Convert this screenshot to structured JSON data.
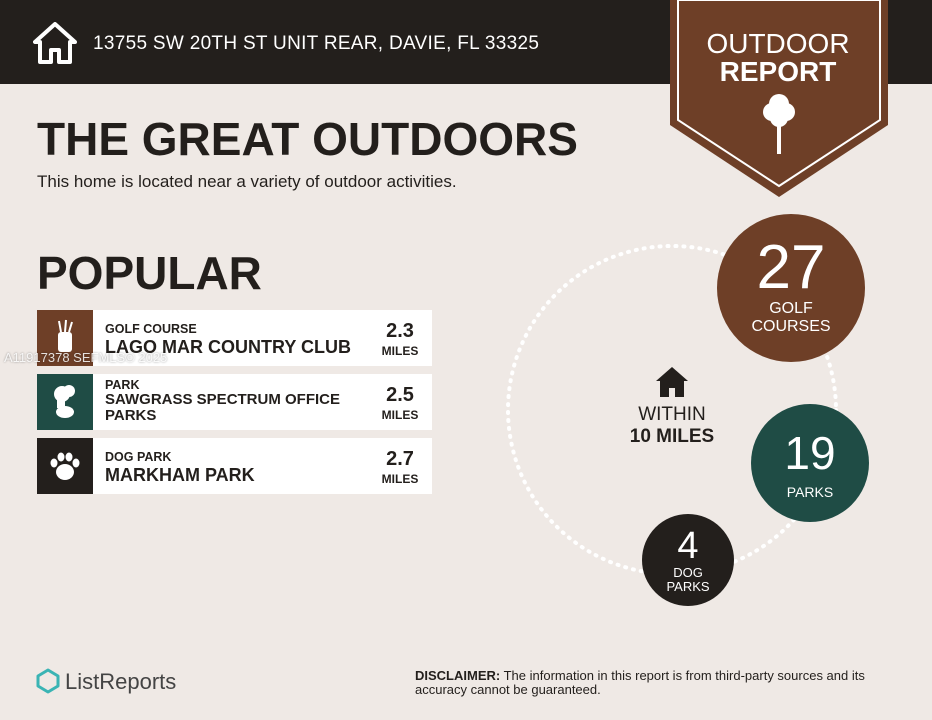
{
  "header": {
    "address": "13755 SW 20TH ST UNIT REAR, DAVIE, FL 33325"
  },
  "badge": {
    "line1": "OUTDOOR",
    "line2": "REPORT"
  },
  "title": "THE GREAT OUTDOORS",
  "subtitle": "This home is located near a variety of outdoor activities.",
  "popular": {
    "heading": "POPULAR",
    "items": [
      {
        "category": "GOLF COURSE",
        "name": "LAGO MAR COUNTRY CLUB",
        "distance": 2.3,
        "unit": "MILES"
      },
      {
        "category": "PARK",
        "name": "SAWGRASS SPECTRUM OFFICE PARKS",
        "distance": 2.5,
        "unit": "MILES"
      },
      {
        "category": "DOG PARK",
        "name": "MARKHAM PARK",
        "distance": 2.7,
        "unit": "MILES"
      }
    ]
  },
  "summary": {
    "center_line1": "WITHIN",
    "center_line2": "10 MILES",
    "counts": [
      {
        "count": 27,
        "label_line1": "GOLF",
        "label_line2": "COURSES"
      },
      {
        "count": 19,
        "label_line1": "PARKS"
      },
      {
        "count": 4,
        "label_line1": "DOG",
        "label_line2": "PARKS"
      }
    ]
  },
  "watermark": "A11917378  SEFMLS© 2025",
  "footer": {
    "brand": "ListReports",
    "disclaimer_label": "DISCLAIMER:",
    "disclaimer_text": "The information in this report is from third-party sources and its accuracy cannot be guaranteed."
  }
}
